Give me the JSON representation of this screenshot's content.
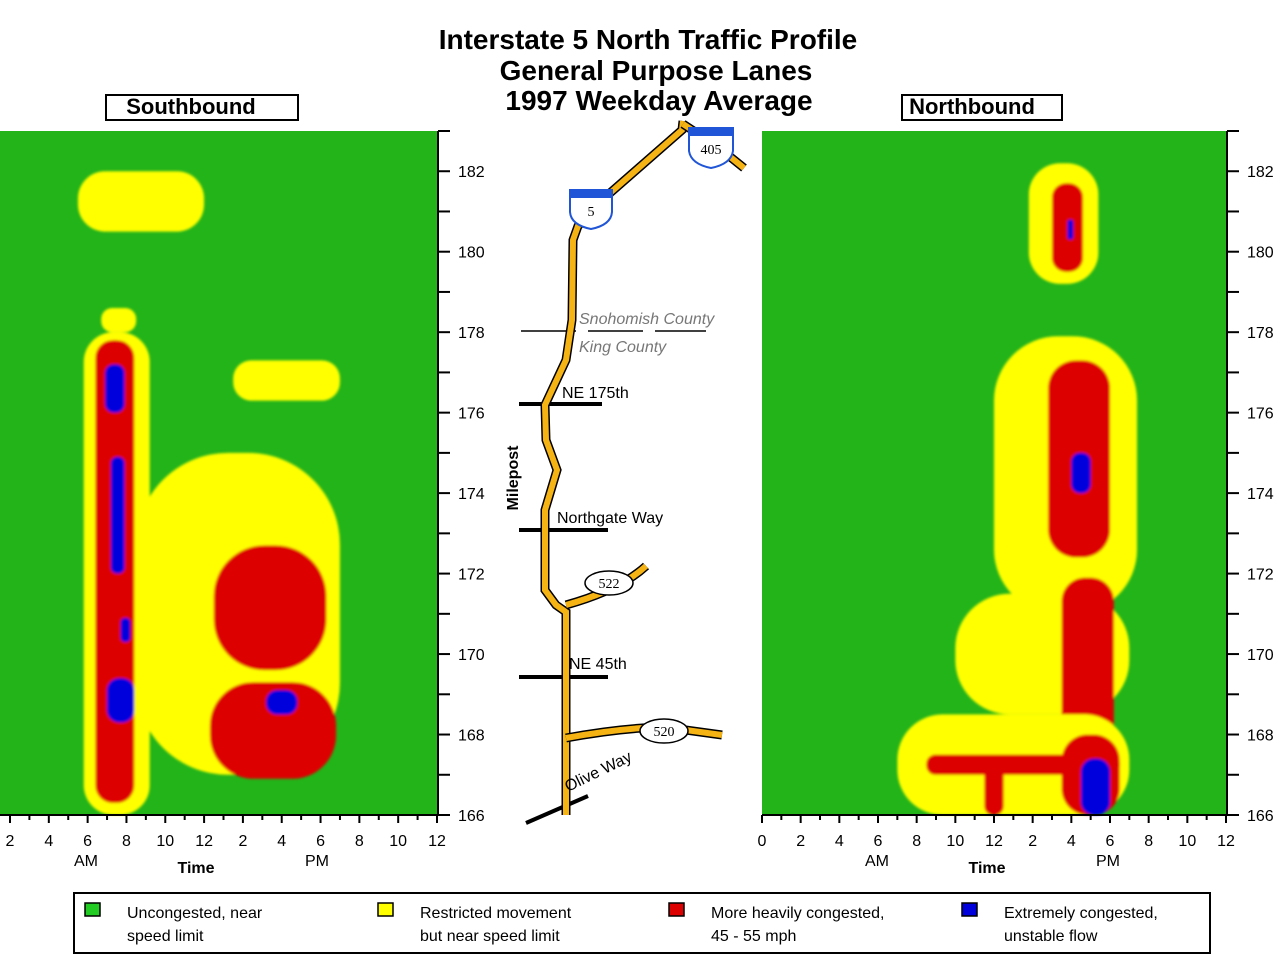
{
  "title": [
    "Interstate 5 North Traffic Profile",
    "General Purpose Lanes",
    "1997 Weekday Average"
  ],
  "panels": {
    "southbound_label": "Southbound",
    "northbound_label": "Northbound"
  },
  "milepost_axis": {
    "title": "Milepost",
    "labels": [
      "182",
      "180",
      "178",
      "176",
      "174",
      "172",
      "170",
      "168",
      "166"
    ]
  },
  "time_axis": {
    "title": "Time",
    "south_tick_labels": [
      "2",
      "4",
      "6",
      "8",
      "10",
      "12",
      "2",
      "4",
      "6",
      "8",
      "10",
      "12"
    ],
    "north_tick_labels": [
      "0",
      "2",
      "4",
      "6",
      "8",
      "10",
      "12",
      "2",
      "4",
      "6",
      "8",
      "10",
      "12"
    ],
    "am_label": "AM",
    "pm_label": "PM"
  },
  "map": {
    "county_north": "Snohomish County",
    "county_south": "King County",
    "streets": [
      "NE 175th",
      "Northgate Way",
      "NE 45th",
      "Olive Way"
    ],
    "shields": [
      "5",
      "405",
      "522",
      "520"
    ]
  },
  "legend": [
    {
      "line1": "Uncongested, near",
      "line2": "speed limit",
      "color": "#22cc22"
    },
    {
      "line1": "Restricted movement",
      "line2": "but near speed limit",
      "color": "#ffff00"
    },
    {
      "line1": "More heavily congested,",
      "line2": "45 - 55 mph",
      "color": "#dd0000"
    },
    {
      "line1": "Extremely  congested,",
      "line2": "unstable flow",
      "color": "#0000dd"
    }
  ],
  "colors": {
    "uncongested": "#22b419",
    "restricted": "#ffff00",
    "heavy": "#dd0000",
    "extreme": "#0000dd",
    "freeway": "#f5b314"
  },
  "chart_data": [
    {
      "type": "heatmap",
      "title": "Southbound",
      "xlabel": "Time",
      "ylabel": "Milepost",
      "xlim_hours": [
        1,
        24
      ],
      "ylim": [
        166,
        183
      ],
      "levels": [
        "Uncongested, near speed limit",
        "Restricted movement but near speed limit",
        "More heavily congested, 45 - 55 mph",
        "Extremely  congested, unstable flow"
      ],
      "regions": [
        {
          "level": 1,
          "hours": [
            5.5,
            12.0
          ],
          "mileposts": [
            180.5,
            182.0
          ]
        },
        {
          "level": 1,
          "hours": [
            6.7,
            8.5
          ],
          "mileposts": [
            178.0,
            178.6
          ]
        },
        {
          "level": 1,
          "hours": [
            5.8,
            9.2
          ],
          "mileposts": [
            166.0,
            178.0
          ]
        },
        {
          "level": 2,
          "hours": [
            6.4,
            8.4
          ],
          "mileposts": [
            166.3,
            177.8
          ]
        },
        {
          "level": 3,
          "hours": [
            6.9,
            7.9
          ],
          "mileposts": [
            176.0,
            177.2
          ]
        },
        {
          "level": 3,
          "hours": [
            7.2,
            7.9
          ],
          "mileposts": [
            172.0,
            174.9
          ]
        },
        {
          "level": 3,
          "hours": [
            7.7,
            8.2
          ],
          "mileposts": [
            170.3,
            170.9
          ]
        },
        {
          "level": 3,
          "hours": [
            7.0,
            8.4
          ],
          "mileposts": [
            168.3,
            169.4
          ]
        },
        {
          "level": 1,
          "hours": [
            8.5,
            19.0
          ],
          "mileposts": [
            167.0,
            175.0
          ]
        },
        {
          "level": 1,
          "hours": [
            13.5,
            19.0
          ],
          "mileposts": [
            176.3,
            177.3
          ]
        },
        {
          "level": 2,
          "hours": [
            12.5,
            18.3
          ],
          "mileposts": [
            169.6,
            172.7
          ]
        },
        {
          "level": 2,
          "hours": [
            12.3,
            18.8
          ],
          "mileposts": [
            166.9,
            169.3
          ]
        },
        {
          "level": 3,
          "hours": [
            15.2,
            16.8
          ],
          "mileposts": [
            168.5,
            169.1
          ]
        }
      ]
    },
    {
      "type": "heatmap",
      "title": "Northbound",
      "xlabel": "Time",
      "ylabel": "Milepost",
      "xlim_hours": [
        0,
        24
      ],
      "ylim": [
        166,
        183
      ],
      "levels": [
        "Uncongested, near speed limit",
        "Restricted movement but near speed limit",
        "More heavily congested, 45 - 55 mph",
        "Extremely  congested, unstable flow"
      ],
      "regions": [
        {
          "level": 1,
          "hours": [
            13.8,
            17.4
          ],
          "mileposts": [
            179.2,
            182.2
          ]
        },
        {
          "level": 2,
          "hours": [
            15.0,
            16.6
          ],
          "mileposts": [
            179.5,
            181.7
          ]
        },
        {
          "level": 3,
          "hours": [
            15.8,
            16.1
          ],
          "mileposts": [
            180.3,
            180.8
          ]
        },
        {
          "level": 1,
          "hours": [
            12.0,
            19.4
          ],
          "mileposts": [
            171.0,
            177.9
          ]
        },
        {
          "level": 2,
          "hours": [
            14.8,
            18.0
          ],
          "mileposts": [
            172.4,
            177.3
          ]
        },
        {
          "level": 3,
          "hours": [
            16.0,
            17.0
          ],
          "mileposts": [
            174.0,
            175.0
          ]
        },
        {
          "level": 1,
          "hours": [
            10.0,
            19.0
          ],
          "mileposts": [
            168.5,
            171.5
          ]
        },
        {
          "level": 2,
          "hours": [
            15.5,
            18.2
          ],
          "mileposts": [
            167.5,
            171.9
          ]
        },
        {
          "level": 1,
          "hours": [
            7.0,
            19.0
          ],
          "mileposts": [
            166.0,
            168.5
          ]
        },
        {
          "level": 2,
          "hours": [
            8.5,
            18.5
          ],
          "mileposts": [
            167.0,
            167.5
          ]
        },
        {
          "level": 2,
          "hours": [
            11.5,
            12.5
          ],
          "mileposts": [
            166.0,
            167.4
          ]
        },
        {
          "level": 2,
          "hours": [
            15.5,
            18.5
          ],
          "mileposts": [
            166.0,
            168.0
          ]
        },
        {
          "level": 3,
          "hours": [
            16.5,
            18.0
          ],
          "mileposts": [
            166.0,
            167.4
          ]
        }
      ]
    }
  ]
}
